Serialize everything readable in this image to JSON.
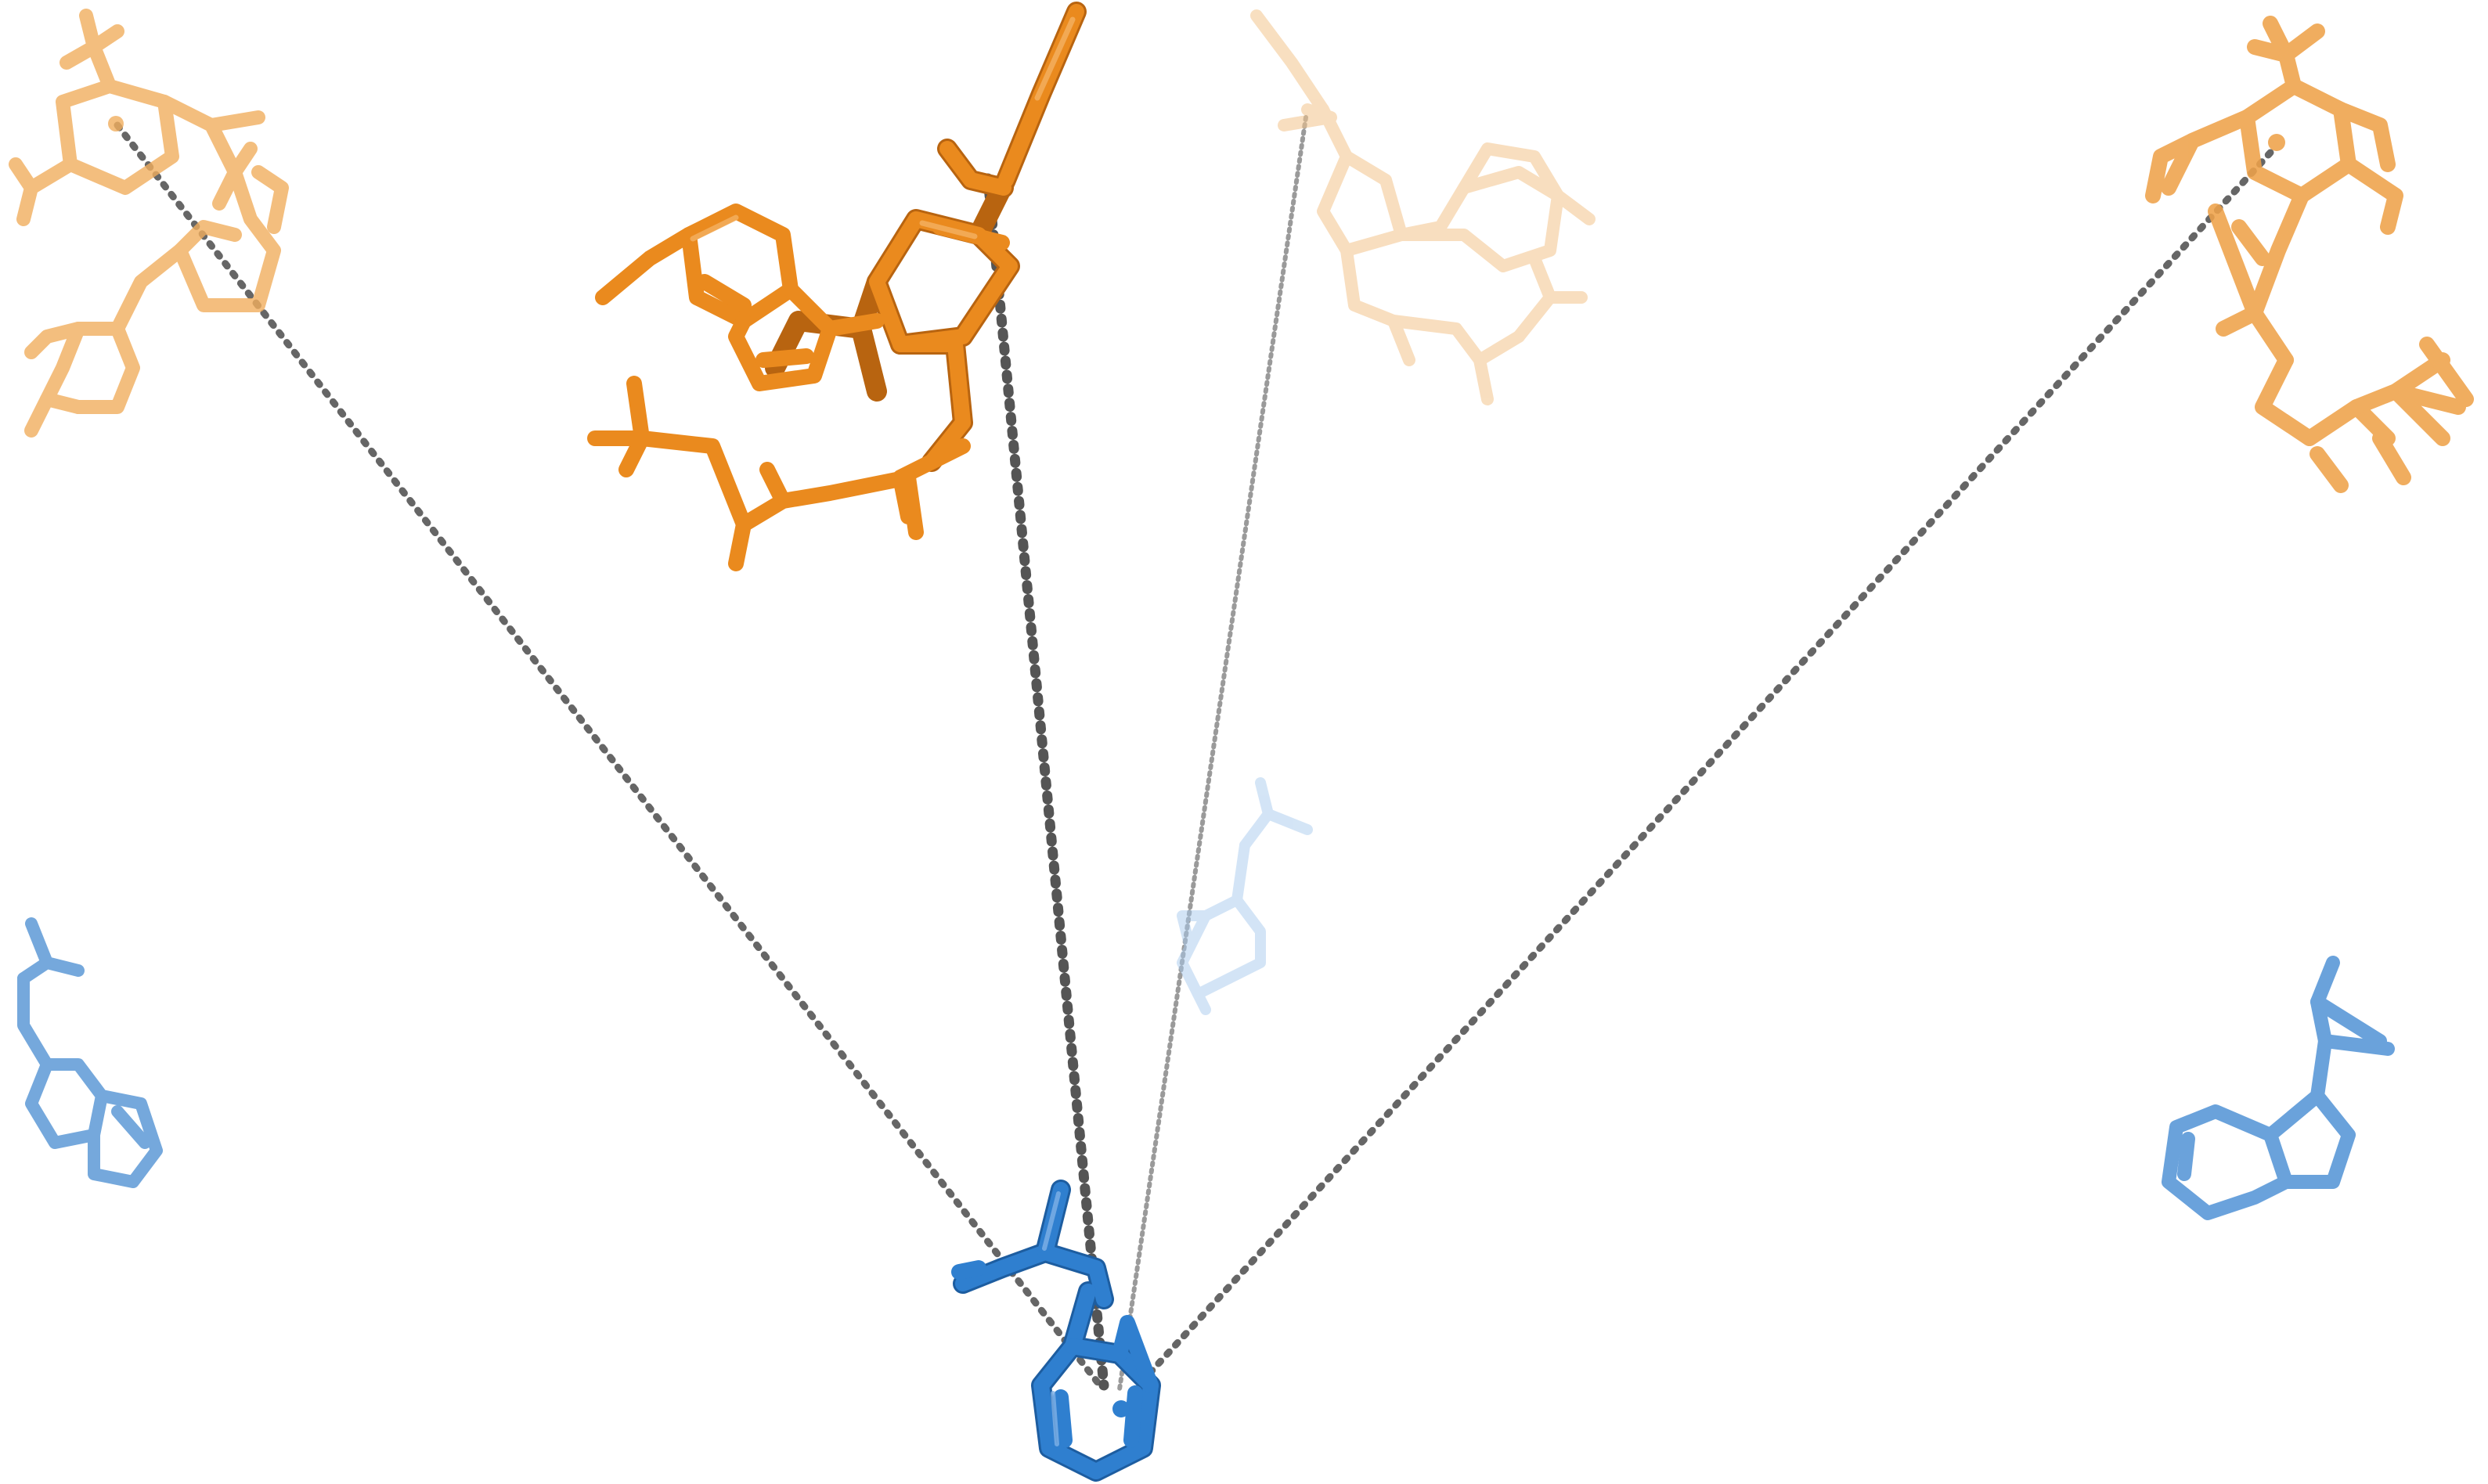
{
  "scene": {
    "subject": "molecular-structure-render",
    "background": "#ffffff",
    "colors": {
      "ligand_orange": "#e8861a",
      "ligand_orange_dark": "#b86410",
      "ligand_orange_faded": "#f2b46a",
      "ligand_orange_ghost": "#f6cfa0",
      "residue_blue": "#2f7fcf",
      "residue_blue_dark": "#1d5da0",
      "residue_blue_faded": "#6fa6dc",
      "residue_blue_ghost": "#b9d5f0",
      "distance_dash": "#666666"
    },
    "molecules": [
      {
        "name": "ligand-center",
        "color": "ligand_orange",
        "opacity": 1.0
      },
      {
        "name": "ligand-top-left",
        "color": "ligand_orange_faded",
        "opacity": 0.8
      },
      {
        "name": "ligand-top-right",
        "color": "ligand_orange_faded",
        "opacity": 0.85
      },
      {
        "name": "ligand-ghost",
        "color": "ligand_orange_ghost",
        "opacity": 0.55
      },
      {
        "name": "residue-center",
        "color": "residue_blue",
        "opacity": 1.0
      },
      {
        "name": "residue-left",
        "color": "residue_blue_faded",
        "opacity": 0.85
      },
      {
        "name": "residue-right",
        "color": "residue_blue_faded",
        "opacity": 0.9
      },
      {
        "name": "residue-ghost",
        "color": "residue_blue_ghost",
        "opacity": 0.5
      }
    ],
    "distance_lines": 4
  }
}
